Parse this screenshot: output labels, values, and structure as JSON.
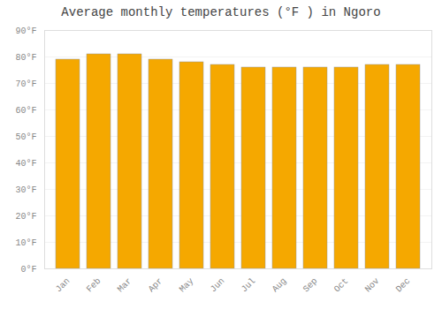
{
  "chart_data": {
    "type": "bar",
    "title": "Average monthly temperatures (°F ) in Ngoro",
    "categories": [
      "Jan",
      "Feb",
      "Mar",
      "Apr",
      "May",
      "Jun",
      "Jul",
      "Aug",
      "Sep",
      "Oct",
      "Nov",
      "Dec"
    ],
    "values": [
      79,
      81,
      81,
      79,
      78,
      77,
      76,
      76,
      76,
      76,
      77,
      77
    ],
    "color": "#F5A800",
    "ylim": [
      0,
      90
    ],
    "yticks": [
      {
        "value": 0,
        "label": "0°F"
      },
      {
        "value": 10,
        "label": "10°F"
      },
      {
        "value": 20,
        "label": "20°F"
      },
      {
        "value": 30,
        "label": "30°F"
      },
      {
        "value": 40,
        "label": "40°F"
      },
      {
        "value": 50,
        "label": "50°F"
      },
      {
        "value": 60,
        "label": "60°F"
      },
      {
        "value": 70,
        "label": "70°F"
      },
      {
        "value": 80,
        "label": "80°F"
      },
      {
        "value": 90,
        "label": "90°F"
      }
    ],
    "grid": true
  }
}
